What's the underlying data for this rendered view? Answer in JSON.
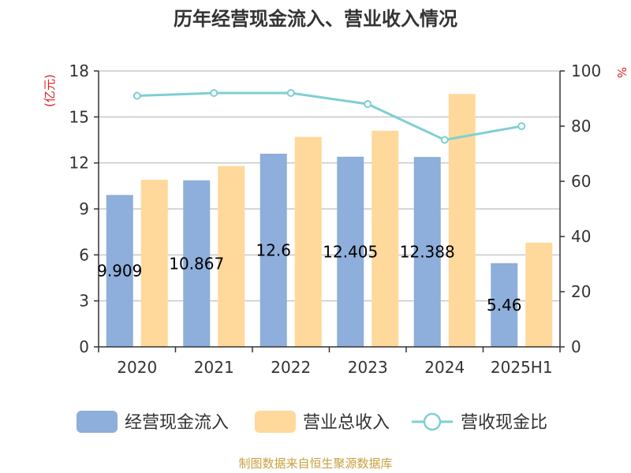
{
  "chart_data": {
    "type": "bar",
    "title": "历年经营现金流入、营业收入情况",
    "categories": [
      "2020",
      "2021",
      "2022",
      "2023",
      "2024",
      "2025H1"
    ],
    "left_axis": {
      "unit": "(亿元)",
      "range": [
        0,
        18
      ],
      "ticks": [
        0,
        3,
        6,
        9,
        12,
        15,
        18
      ]
    },
    "right_axis": {
      "unit": "%",
      "range": [
        0,
        100
      ],
      "ticks": [
        0,
        20,
        40,
        60,
        80,
        100
      ]
    },
    "grid": true,
    "legend_position": "bottom",
    "series": [
      {
        "name": "经营现金流入",
        "type": "bar",
        "axis": "left",
        "color": "#8eaedb",
        "values": [
          9.909,
          10.867,
          12.6,
          12.405,
          12.388,
          5.46
        ],
        "labels": [
          "9.909",
          "10.867",
          "12.6",
          "12.405",
          "12.388",
          "5.46"
        ]
      },
      {
        "name": "营业总收入",
        "type": "bar",
        "axis": "left",
        "color": "#fed99b",
        "values": [
          10.9,
          11.8,
          13.7,
          14.1,
          16.5,
          6.8
        ]
      },
      {
        "name": "营收现金比",
        "type": "line",
        "axis": "right",
        "color": "#7ecfd4",
        "values": [
          91,
          92,
          92,
          88,
          75,
          80
        ]
      }
    ]
  },
  "source": "制图数据来自恒生聚源数据库"
}
